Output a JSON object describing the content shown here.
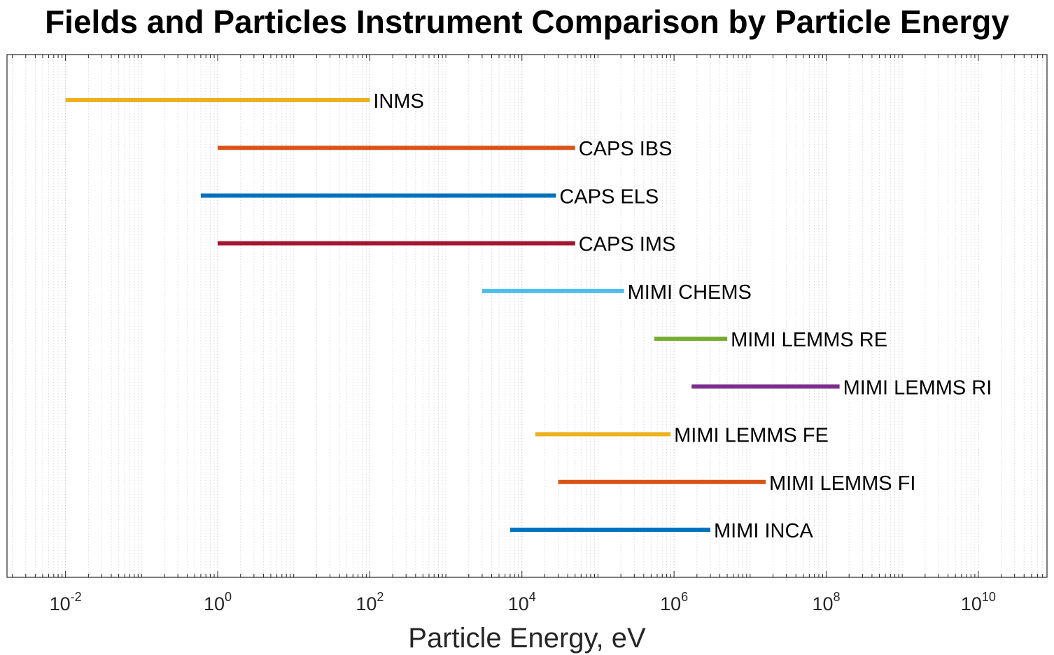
{
  "chart_data": {
    "type": "range-bar",
    "title": "Fields and Particles Instrument Comparison by Particle Energy",
    "xlabel": "Particle Energy, eV",
    "ylabel": "",
    "xscale": "log",
    "xlim": [
      0.0017,
      80000000000.0
    ],
    "x_ticks": [
      {
        "base": "10",
        "exp": "-2"
      },
      {
        "base": "10",
        "exp": "0"
      },
      {
        "base": "10",
        "exp": "2"
      },
      {
        "base": "10",
        "exp": "4"
      },
      {
        "base": "10",
        "exp": "6"
      },
      {
        "base": "10",
        "exp": "8"
      },
      {
        "base": "10",
        "exp": "10"
      }
    ],
    "grid": "x minor and major (dotted)",
    "series": [
      {
        "name": "INMS",
        "min": 0.01,
        "max": 100,
        "color": "#EDB120"
      },
      {
        "name": "CAPS IBS",
        "min": 1,
        "max": 50000,
        "color": "#D95319"
      },
      {
        "name": "CAPS ELS",
        "min": 0.6,
        "max": 28000,
        "color": "#0072BD"
      },
      {
        "name": "CAPS IMS",
        "min": 1,
        "max": 50000,
        "color": "#A2142F"
      },
      {
        "name": "MIMI CHEMS",
        "min": 3000,
        "max": 220000,
        "color": "#4DBEEE"
      },
      {
        "name": "MIMI LEMMS RE",
        "min": 550000,
        "max": 5000000,
        "color": "#77AC30"
      },
      {
        "name": "MIMI LEMMS RI",
        "min": 1700000,
        "max": 150000000,
        "color": "#7E2F8E"
      },
      {
        "name": "MIMI LEMMS FE",
        "min": 15000,
        "max": 900000,
        "color": "#EDB120"
      },
      {
        "name": "MIMI LEMMS FI",
        "min": 30000,
        "max": 16000000,
        "color": "#D95319"
      },
      {
        "name": "MIMI INCA",
        "min": 7000,
        "max": 3000000,
        "color": "#0072BD"
      }
    ]
  }
}
